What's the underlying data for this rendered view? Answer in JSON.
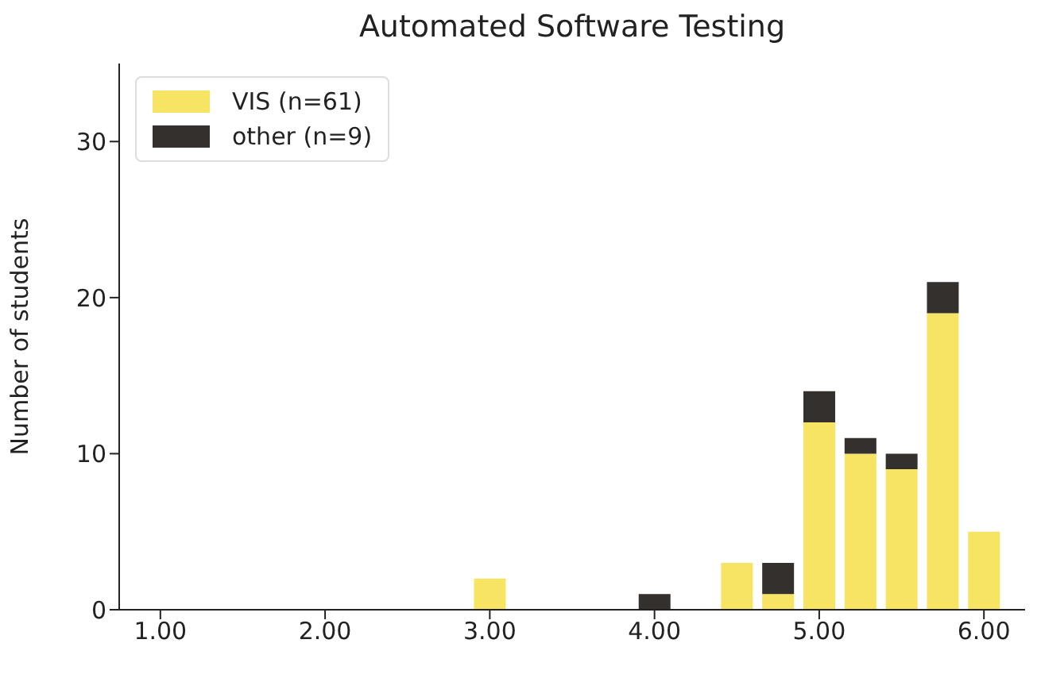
{
  "chart_data": {
    "type": "bar",
    "title": "Automated Software Testing",
    "ylabel": "Number of students",
    "x": [
      3,
      4,
      4.5,
      4.75,
      5,
      5.25,
      5.5,
      5.75,
      6
    ],
    "stacked": true,
    "series": [
      {
        "name": "VIS (n=61)",
        "color": "#f7e463",
        "values": [
          2,
          0,
          3,
          1,
          12,
          10,
          9,
          19,
          5
        ]
      },
      {
        "name": "other (n=9)",
        "color": "#33302e",
        "values": [
          0,
          1,
          0,
          2,
          2,
          1,
          1,
          2,
          0
        ]
      }
    ],
    "xlim": [
      0.75,
      6.25
    ],
    "xticks": [
      {
        "value": 1,
        "label": "1.00"
      },
      {
        "value": 2,
        "label": "2.00"
      },
      {
        "value": 3,
        "label": "3.00"
      },
      {
        "value": 4,
        "label": "4.00"
      },
      {
        "value": 5,
        "label": "5.00"
      },
      {
        "value": 6,
        "label": "6.00"
      }
    ],
    "ylim": [
      0,
      35
    ],
    "yticks": [
      0,
      10,
      20,
      30
    ],
    "grid": false,
    "legend": "top left"
  }
}
